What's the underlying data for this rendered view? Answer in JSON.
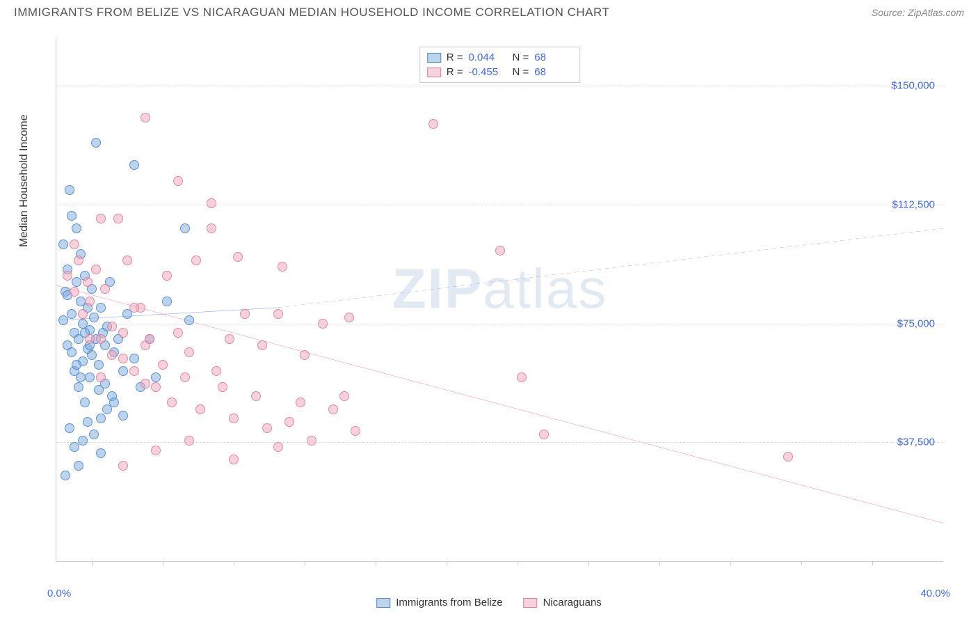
{
  "header": {
    "title": "IMMIGRANTS FROM BELIZE VS NICARAGUAN MEDIAN HOUSEHOLD INCOME CORRELATION CHART",
    "source_prefix": "Source: ",
    "source_name": "ZipAtlas.com"
  },
  "chart": {
    "type": "scatter",
    "y_axis_title": "Median Household Income",
    "watermark_prefix": "ZIP",
    "watermark_suffix": "atlas",
    "x_axis": {
      "min": 0.0,
      "max": 40.0,
      "min_label": "0.0%",
      "max_label": "40.0%",
      "tick_positions_pct": [
        4,
        12,
        20,
        28,
        36,
        44,
        52,
        60,
        68,
        76,
        84,
        92
      ]
    },
    "y_axis": {
      "min": 0,
      "max": 165000,
      "gridlines": [
        {
          "value": 37500,
          "label": "$37,500"
        },
        {
          "value": 75000,
          "label": "$75,000"
        },
        {
          "value": 112500,
          "label": "$112,500"
        },
        {
          "value": 150000,
          "label": "$150,000"
        }
      ]
    },
    "colors": {
      "blue_fill": "rgba(122, 169, 222, 0.5)",
      "blue_stroke": "#4169c8",
      "pink_fill": "rgba(240, 165, 185, 0.5)",
      "pink_stroke": "#dc7896",
      "grid": "#dddddd",
      "axis": "#cccccc",
      "tick_label": "#4169e1",
      "background": "#ffffff"
    },
    "stats_legend": {
      "series": [
        {
          "swatch": "blue",
          "r_label": "R =",
          "r_value": "0.044",
          "n_label": "N =",
          "n_value": "68"
        },
        {
          "swatch": "pink",
          "r_label": "R =",
          "r_value": "-0.455",
          "n_label": "N =",
          "n_value": "68"
        }
      ]
    },
    "bottom_legend": {
      "items": [
        {
          "swatch": "blue",
          "label": "Immigrants from Belize"
        },
        {
          "swatch": "pink",
          "label": "Nicaraguans"
        }
      ]
    },
    "trend_lines": {
      "blue": {
        "x1": 0,
        "y1": 76000,
        "x2_solid": 10,
        "y2_solid": 80000,
        "x2_dash": 40,
        "y2_dash": 105000,
        "stroke": "#3b6fd6",
        "dash": "6,5"
      },
      "pink": {
        "x1": 0,
        "y1": 87000,
        "x2": 40,
        "y2": 12000,
        "stroke": "#e76b8f"
      }
    },
    "series": [
      {
        "name": "belize",
        "class": "blue",
        "points": [
          [
            0.3,
            76000
          ],
          [
            0.4,
            85000
          ],
          [
            0.5,
            68000
          ],
          [
            0.5,
            92000
          ],
          [
            0.6,
            117000
          ],
          [
            0.7,
            78000
          ],
          [
            0.7,
            109000
          ],
          [
            0.8,
            60000
          ],
          [
            0.8,
            72000
          ],
          [
            0.9,
            88000
          ],
          [
            0.9,
            105000
          ],
          [
            1.0,
            55000
          ],
          [
            1.0,
            70000
          ],
          [
            1.1,
            82000
          ],
          [
            1.1,
            97000
          ],
          [
            1.2,
            63000
          ],
          [
            1.2,
            75000
          ],
          [
            1.3,
            90000
          ],
          [
            1.3,
            50000
          ],
          [
            1.4,
            67000
          ],
          [
            1.4,
            80000
          ],
          [
            1.5,
            73000
          ],
          [
            1.5,
            58000
          ],
          [
            1.6,
            86000
          ],
          [
            1.6,
            65000
          ],
          [
            1.7,
            77000
          ],
          [
            1.8,
            132000
          ],
          [
            1.8,
            70000
          ],
          [
            1.9,
            62000
          ],
          [
            1.9,
            54000
          ],
          [
            2.0,
            80000
          ],
          [
            2.0,
            45000
          ],
          [
            2.1,
            72000
          ],
          [
            2.2,
            68000
          ],
          [
            2.2,
            56000
          ],
          [
            2.3,
            74000
          ],
          [
            2.4,
            88000
          ],
          [
            2.5,
            52000
          ],
          [
            2.6,
            66000
          ],
          [
            2.8,
            70000
          ],
          [
            3.0,
            60000
          ],
          [
            3.2,
            78000
          ],
          [
            3.5,
            125000
          ],
          [
            3.5,
            64000
          ],
          [
            3.8,
            55000
          ],
          [
            0.4,
            27000
          ],
          [
            0.6,
            42000
          ],
          [
            0.8,
            36000
          ],
          [
            1.0,
            30000
          ],
          [
            1.2,
            38000
          ],
          [
            1.4,
            44000
          ],
          [
            1.7,
            40000
          ],
          [
            2.0,
            34000
          ],
          [
            2.3,
            48000
          ],
          [
            2.6,
            50000
          ],
          [
            3.0,
            46000
          ],
          [
            0.3,
            100000
          ],
          [
            0.5,
            84000
          ],
          [
            0.7,
            66000
          ],
          [
            0.9,
            62000
          ],
          [
            1.1,
            58000
          ],
          [
            1.3,
            72000
          ],
          [
            1.5,
            68000
          ],
          [
            5.8,
            105000
          ],
          [
            4.2,
            70000
          ],
          [
            4.5,
            58000
          ],
          [
            5.0,
            82000
          ],
          [
            6.0,
            76000
          ]
        ]
      },
      {
        "name": "nicaraguans",
        "class": "pink",
        "points": [
          [
            0.5,
            90000
          ],
          [
            0.8,
            85000
          ],
          [
            1.0,
            95000
          ],
          [
            1.2,
            78000
          ],
          [
            1.4,
            88000
          ],
          [
            1.5,
            82000
          ],
          [
            1.8,
            92000
          ],
          [
            2.0,
            70000
          ],
          [
            2.2,
            86000
          ],
          [
            2.5,
            65000
          ],
          [
            2.8,
            108000
          ],
          [
            3.0,
            72000
          ],
          [
            3.2,
            95000
          ],
          [
            3.5,
            60000
          ],
          [
            3.8,
            80000
          ],
          [
            4.0,
            68000
          ],
          [
            4.2,
            70000
          ],
          [
            4.5,
            55000
          ],
          [
            4.8,
            62000
          ],
          [
            5.0,
            90000
          ],
          [
            5.2,
            50000
          ],
          [
            5.5,
            72000
          ],
          [
            5.8,
            58000
          ],
          [
            6.0,
            66000
          ],
          [
            6.3,
            95000
          ],
          [
            6.5,
            48000
          ],
          [
            7.0,
            113000
          ],
          [
            7.2,
            60000
          ],
          [
            7.5,
            55000
          ],
          [
            7.8,
            70000
          ],
          [
            8.0,
            45000
          ],
          [
            8.2,
            96000
          ],
          [
            8.5,
            78000
          ],
          [
            9.0,
            52000
          ],
          [
            9.3,
            68000
          ],
          [
            9.5,
            42000
          ],
          [
            10.0,
            78000
          ],
          [
            10.2,
            93000
          ],
          [
            10.5,
            44000
          ],
          [
            11.0,
            50000
          ],
          [
            11.2,
            65000
          ],
          [
            11.5,
            38000
          ],
          [
            12.0,
            75000
          ],
          [
            12.5,
            48000
          ],
          [
            13.0,
            52000
          ],
          [
            13.2,
            77000
          ],
          [
            13.5,
            41000
          ],
          [
            4.0,
            140000
          ],
          [
            5.5,
            120000
          ],
          [
            7.0,
            105000
          ],
          [
            2.0,
            108000
          ],
          [
            3.0,
            30000
          ],
          [
            4.5,
            35000
          ],
          [
            6.0,
            38000
          ],
          [
            8.0,
            32000
          ],
          [
            10.0,
            36000
          ],
          [
            17.0,
            138000
          ],
          [
            20.0,
            98000
          ],
          [
            21.0,
            58000
          ],
          [
            22.0,
            40000
          ],
          [
            33.0,
            33000
          ],
          [
            0.8,
            100000
          ],
          [
            1.5,
            70000
          ],
          [
            2.0,
            58000
          ],
          [
            2.5,
            74000
          ],
          [
            3.0,
            64000
          ],
          [
            3.5,
            80000
          ],
          [
            4.0,
            56000
          ]
        ]
      }
    ]
  }
}
